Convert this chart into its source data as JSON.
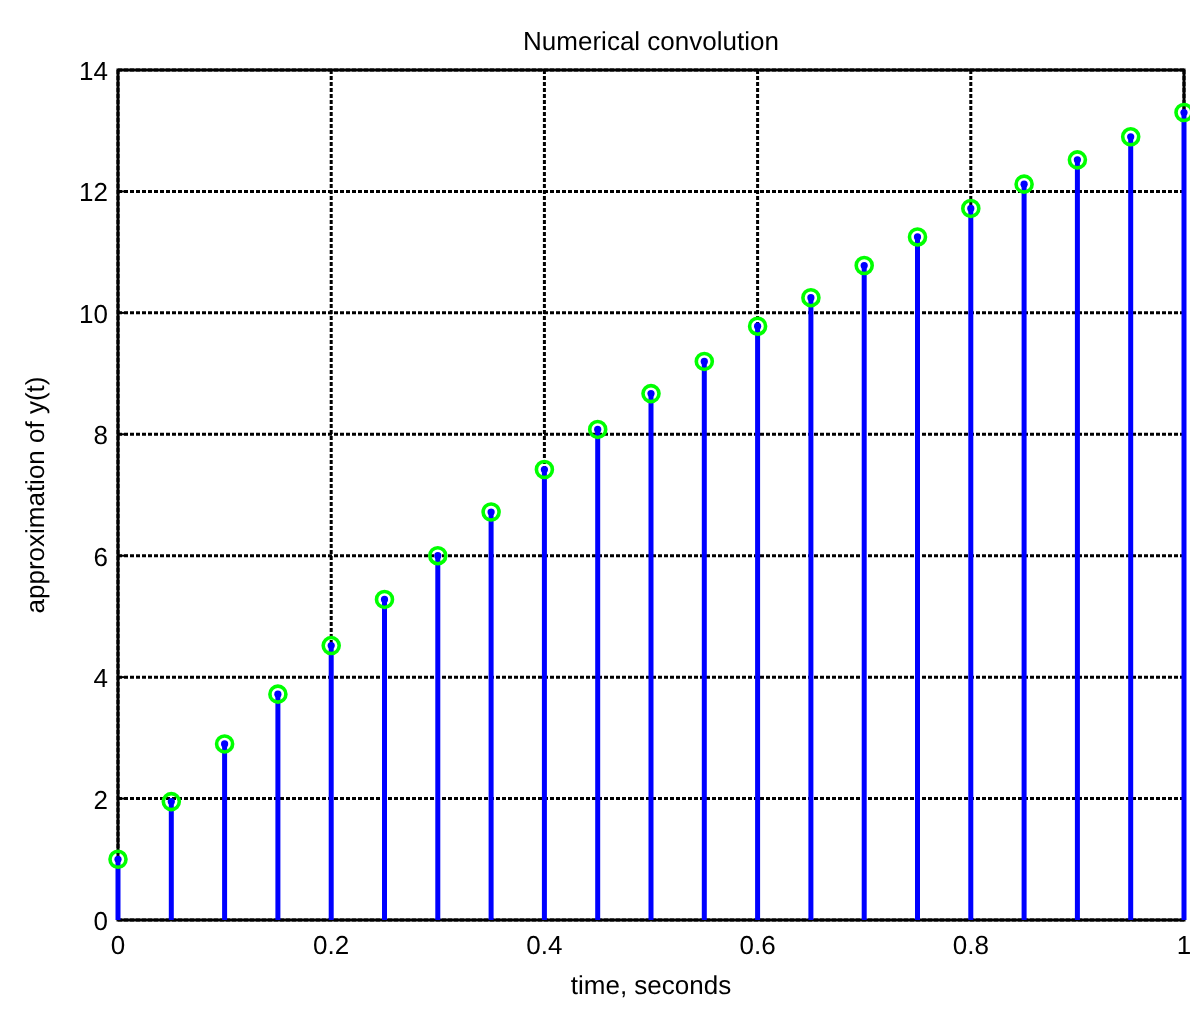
{
  "chart_data": {
    "type": "lollipop",
    "title": "Numerical convolution",
    "xlabel": "time, seconds",
    "ylabel": "approximation of y(t)",
    "x": [
      0,
      0.05,
      0.1,
      0.15,
      0.2,
      0.25,
      0.3,
      0.35,
      0.4,
      0.45,
      0.5,
      0.55,
      0.6,
      0.65,
      0.7,
      0.75,
      0.8,
      0.85,
      0.9,
      0.95,
      1
    ],
    "series": [
      {
        "color": "#0000ff",
        "marker": "circle",
        "values": [
          1,
          1.95,
          2.9,
          3.72,
          4.52,
          5.28,
          6.0,
          6.72,
          7.42,
          8.08,
          8.67,
          9.2,
          9.78,
          10.25,
          10.78,
          11.25,
          11.72,
          12.12,
          12.52,
          12.9,
          13.3
        ]
      },
      {
        "type": "scatter",
        "color": "#00ff00",
        "marker": "circle",
        "values": [
          1,
          1.95,
          2.9,
          3.72,
          4.52,
          5.28,
          6.0,
          6.72,
          7.42,
          8.08,
          8.67,
          9.2,
          9.78,
          10.25,
          10.78,
          11.25,
          11.72,
          12.12,
          12.52,
          12.9,
          13.3
        ]
      }
    ],
    "xlim": [
      0,
      1
    ],
    "xticks": [
      0,
      0.2,
      0.4,
      0.6,
      0.8,
      1
    ],
    "ylim": [
      0,
      14
    ],
    "yticks": [
      0,
      2,
      4,
      6,
      8,
      10,
      12,
      14
    ],
    "grid": true
  }
}
